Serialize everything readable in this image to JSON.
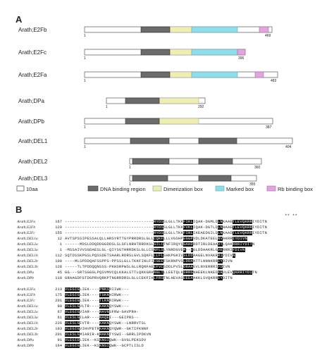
{
  "panel_a_label": "A",
  "panel_b_label": "B",
  "proteins": [
    {
      "name": "Arath;E2Fb",
      "start": "1",
      "end": "469"
    },
    {
      "name": "Arath;E2Fc",
      "start": "1",
      "end": "396"
    },
    {
      "name": "Arath;E2Fa",
      "start": "1",
      "end": "483"
    },
    {
      "name": "Arath;DPa",
      "start": "1",
      "end": "292"
    },
    {
      "name": "Arath;DPb",
      "start": "1",
      "end": "387"
    },
    {
      "name": "Arath;DEL1",
      "start": "1",
      "end": "404"
    },
    {
      "name": "Arath;DEL2",
      "start": "1",
      "end": "360"
    },
    {
      "name": "Arath;DEL3",
      "start": "1",
      "end": "355"
    }
  ],
  "legend": {
    "scale": "10aa",
    "dna_binding": "DNA binding region",
    "dimerization": "Dimerization box",
    "marked": "Marked box",
    "rb_binding": "Rb binding box"
  },
  "colors": {
    "dna_binding": "#6b6b6b",
    "dimerization": "#eeeeb0",
    "marked": "#8fdde8",
    "rb_binding": "#e0a6dc",
    "outline": "#555555"
  },
  "alignment_block1": [
    {
      "name": "Arath;E2Fa",
      "num": "167",
      "seq": "------------------------------------RYDSSLGLLTKKFIKLIQAK-DGMLDLNKAAETLEVQKRRIYDITN"
    },
    {
      "name": "Arath;E2Fb",
      "num": "129",
      "seq": "------------------------------------RYDSSLGLLTKKFVKLIQAK-DGTLDLNHAAETLEVQKRRIYDITN"
    },
    {
      "name": "Arath;E2Fc",
      "num": "155",
      "seq": "------------------------------------RYDSSLGLLTKKFINLIKEAEDGILDLNKAADTLEVQKRRIYDITN"
    },
    {
      "name": "Arath;DEL1a",
      "num": "12",
      "seq": "AVTSPSSIPESSALQLLHRSYRTTGYPRRDRSLGLLCQKFLLLVGSHPEGGPVDLDKATEELNVAKRRIYDIVN"
    },
    {
      "name": "Arath;DEL2a",
      "num": "1",
      "seq": "------MDSLDDQDDGGDDSLSLSFLNRHTRRDKSLGILCTNFIRQYQGAHDRDTIRLDEAADTLQAKRRRIYDITN"
    },
    {
      "name": "Arath;DEL3a",
      "num": "1",
      "seq": "-MSSAIVVSGDAESLGL-QIYSGTHRRDKSLGLLCSNFLSLYNRDGVEM--VGLDDAAKRLGVERRRIYDIVN"
    },
    {
      "name": "Arath;DEL1b",
      "num": "112",
      "seq": "SQTDSSKPGSLPQSSDETSAARLRDRSLGVLSQKFLLLFLSHKPGKIVSLDDAAGELNVAKRRIYDIVN"
    },
    {
      "name": "Arath;DEL2b",
      "num": "100",
      "seq": "----MLSPDDQAFSSPPS-PPSSLGLLTKKFINLFICSEEFSKRNPVSLDDAATTLNNNKRRIYDIVN"
    },
    {
      "name": "Arath;DEL3b",
      "num": "128",
      "seq": "-----TLTPDDQQNSSS-PKHSRPWSLGLLRQNFAEEFVCSDDLPVSLDRAAEVLNVERRRIYDIVN"
    },
    {
      "name": "Arath;DPa",
      "num": "45",
      "seq": "GG---SRTSGGGLPQSVMVCQLKKALSTTLQKKGRKAGLTLLEETQLKSRRGNHEEKLNKEDKRVLEVQKRRIYDITN"
    },
    {
      "name": "Arath;DPb",
      "num": "110",
      "seq": "GRAAGDFGTDGPRVQRKPTNGRRDRSLGLLCEKFIHLFRSTNLHEVASEEEAAKKLSVQKRRIYDITN"
    }
  ],
  "alignment_block2": [
    {
      "name": "Arath;E2Fa",
      "num": "213",
      "seq": "VLEGIGLIEK----PNKSRIIWK---"
    },
    {
      "name": "Arath;E2Fb",
      "num": "175",
      "seq": "VLEGIGLIEK----TSKNHIRWK---"
    },
    {
      "name": "Arath;E2Fc",
      "num": "201",
      "seq": "VLEGIGLIEK----TLKNRIRWK---"
    },
    {
      "name": "Arath;DEL1a",
      "num": "80",
      "seq": "VLESLGVLTR----KAKNQYSWK---"
    },
    {
      "name": "Arath;DEL2a",
      "num": "67",
      "seq": "VLEGIGVIAR----RAVNSFRW-GAVPRA-"
    },
    {
      "name": "Arath;DEL3a",
      "num": "61",
      "seq": "VLESLGILAR----NAQEI---GEIPRS--"
    },
    {
      "name": "Arath;DEL1b",
      "num": "226",
      "seq": "VLESLGIVTR----KAKNQYSWK--LNRRVTSL"
    },
    {
      "name": "Arath;DEL2b",
      "num": "193",
      "seq": "VLEGIGVIHVPETRKAKNQYQWR--GKTIFKNNF"
    },
    {
      "name": "Arath;DEL3b",
      "num": "201",
      "seq": "VLESLGMIARIR-KRAKNTYSWI--GRRLIPDKVN"
    },
    {
      "name": "Arath;DPa",
      "num": "91",
      "seq": "VLEGIDLIEK--KSKNSIQWK--GVGLPEKSDV"
    },
    {
      "name": "Arath;DPb",
      "num": "164",
      "seq": "VLEGIGLIEK--KSKNSIQWK--GCPTLISLD"
    }
  ],
  "stars": "** **"
}
